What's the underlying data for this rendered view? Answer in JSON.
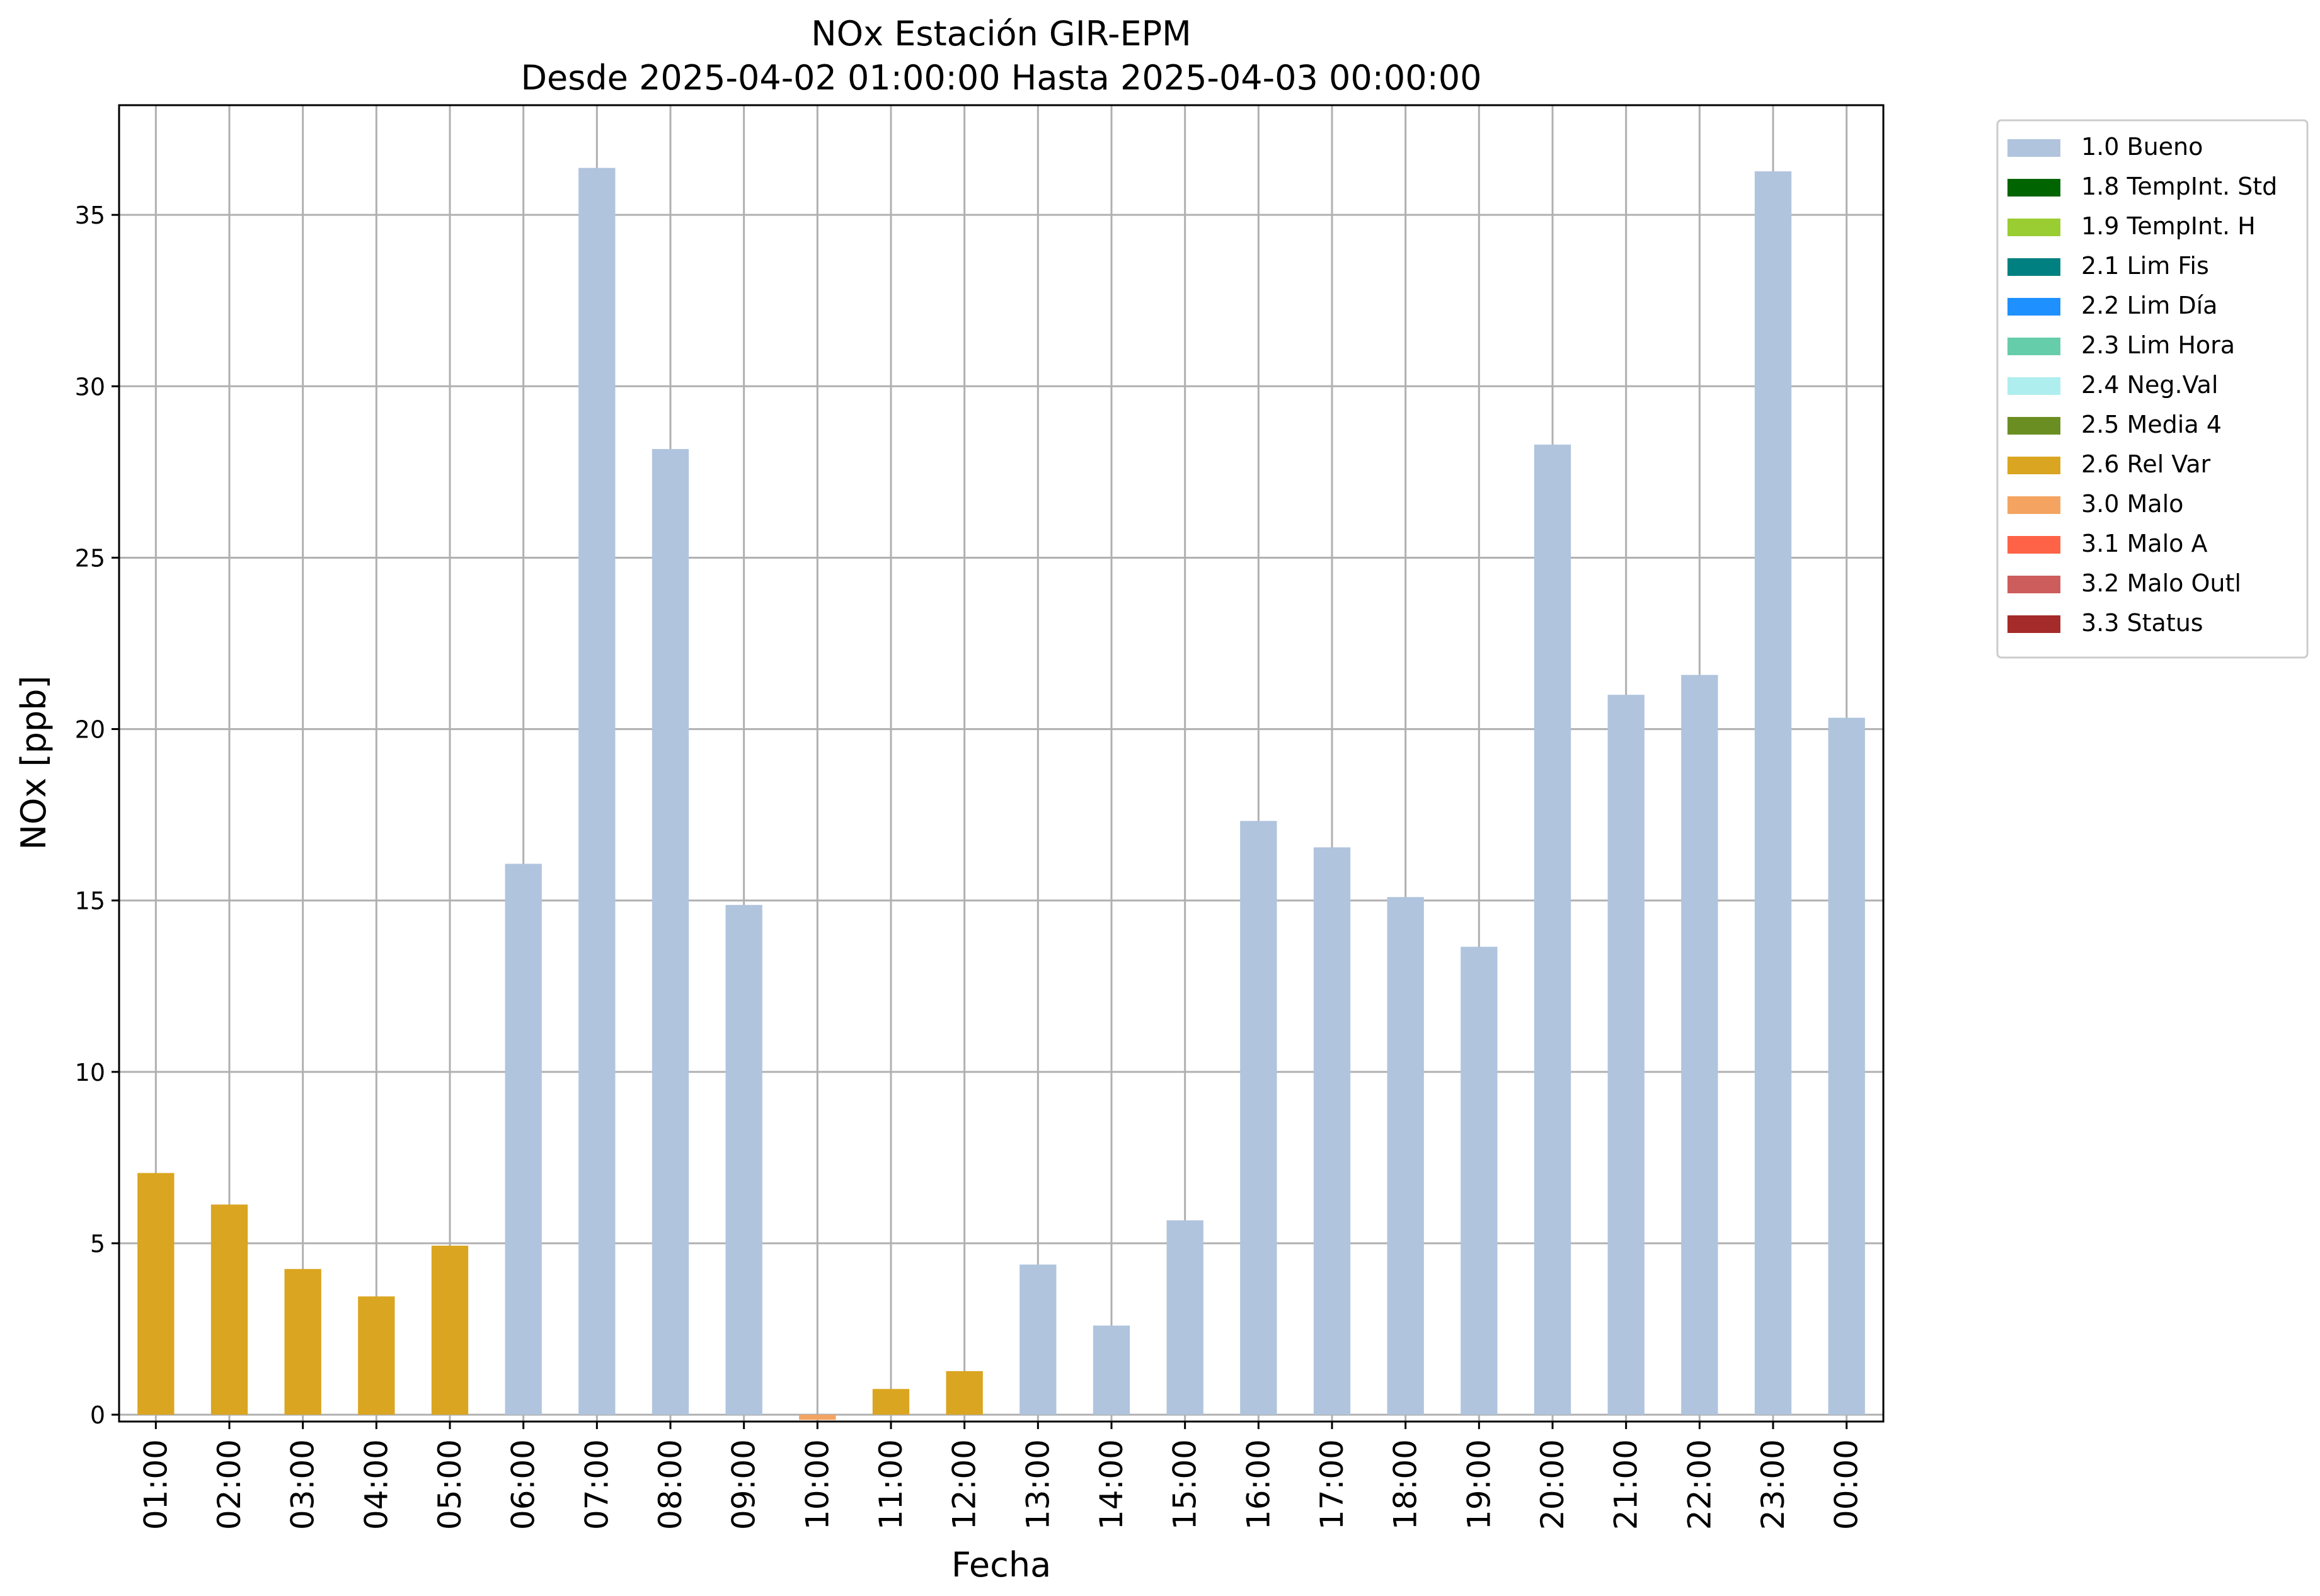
{
  "chart_data": {
    "type": "bar",
    "title": "NOx Estación GIR-EPM",
    "subtitle": "Desde 2025-04-02 01:00:00 Hasta 2025-04-03 00:00:00",
    "xlabel": "Fecha",
    "ylabel": "NOx [ppb]",
    "ylim": [
      -0.2,
      38.2
    ],
    "yticks": [
      "0",
      "5",
      "10",
      "15",
      "20",
      "25",
      "30",
      "35"
    ],
    "grid": true,
    "legend_position": "outside-top-right",
    "categories": [
      "01:00",
      "02:00",
      "03:00",
      "04:00",
      "05:00",
      "06:00",
      "07:00",
      "08:00",
      "09:00",
      "10:00",
      "11:00",
      "12:00",
      "13:00",
      "14:00",
      "15:00",
      "16:00",
      "17:00",
      "18:00",
      "19:00",
      "20:00",
      "21:00",
      "22:00",
      "23:00",
      "00:00"
    ],
    "values": [
      7.05,
      6.13,
      4.25,
      3.45,
      4.93,
      16.07,
      36.37,
      28.17,
      14.87,
      -0.15,
      0.75,
      1.27,
      4.38,
      2.6,
      5.67,
      17.32,
      16.55,
      15.1,
      13.65,
      28.3,
      21.0,
      21.58,
      36.27,
      20.33
    ],
    "flags": [
      "2.6 Rel Var",
      "2.6 Rel Var",
      "2.6 Rel Var",
      "2.6 Rel Var",
      "2.6 Rel Var",
      "1.0 Bueno",
      "1.0 Bueno",
      "1.0 Bueno",
      "1.0 Bueno",
      "3.0 Malo",
      "2.6 Rel Var",
      "2.6 Rel Var",
      "1.0 Bueno",
      "1.0 Bueno",
      "1.0 Bueno",
      "1.0 Bueno",
      "1.0 Bueno",
      "1.0 Bueno",
      "1.0 Bueno",
      "1.0 Bueno",
      "1.0 Bueno",
      "1.0 Bueno",
      "1.0 Bueno",
      "1.0 Bueno"
    ],
    "legend": [
      {
        "label": "1.0 Bueno",
        "color": "#b0c4de"
      },
      {
        "label": "1.8 TempInt. Std",
        "color": "#006400"
      },
      {
        "label": "1.9 TempInt. H",
        "color": "#9acd32"
      },
      {
        "label": "2.1 Lim Fis",
        "color": "#008080"
      },
      {
        "label": "2.2 Lim Día",
        "color": "#1e90ff"
      },
      {
        "label": "2.3 Lim Hora",
        "color": "#66cdaa"
      },
      {
        "label": "2.4 Neg.Val",
        "color": "#afeeee"
      },
      {
        "label": "2.5 Media 4",
        "color": "#6b8e23"
      },
      {
        "label": "2.6 Rel Var",
        "color": "#daa520"
      },
      {
        "label": "3.0 Malo",
        "color": "#f4a460"
      },
      {
        "label": "3.1 Malo A",
        "color": "#ff6347"
      },
      {
        "label": "3.2 Malo Outl",
        "color": "#cd5c5c"
      },
      {
        "label": "3.3 Status",
        "color": "#a52a2a"
      }
    ]
  }
}
